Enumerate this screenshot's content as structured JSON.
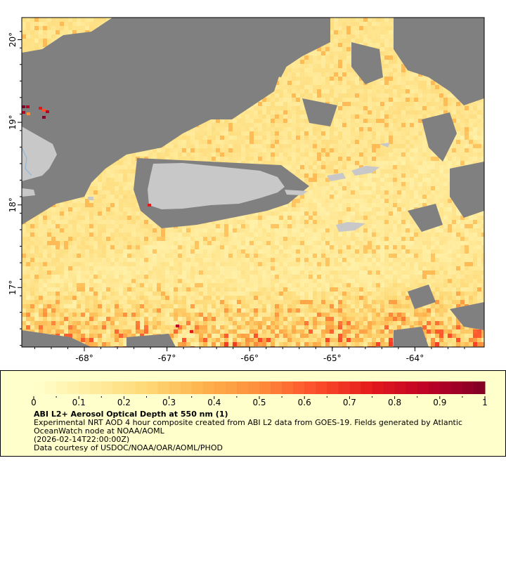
{
  "map": {
    "y_axis_labels": [
      "20°",
      "19°",
      "18°",
      "17°"
    ],
    "y_axis_values": [
      20,
      19,
      18,
      17
    ],
    "x_axis_labels": [
      "-68°",
      "-67°",
      "-66°",
      "-65°",
      "-64°"
    ],
    "x_axis_values": [
      -68,
      -67,
      -66,
      -65,
      -64
    ],
    "colors": {
      "cloud_mask": "#808080",
      "land": "#c8c8c8",
      "river": "#8ab4d8",
      "background": "#ffffff"
    }
  },
  "legend": {
    "colorbar": {
      "min": 0,
      "max": 1,
      "tick_labels": [
        "0",
        "0.1",
        "0.2",
        "0.3",
        "0.4",
        "0.5",
        "0.6",
        "0.7",
        "0.8",
        "0.9",
        "1"
      ],
      "palette_stops": [
        "#ffffcc",
        "#ffeda0",
        "#fed976",
        "#feb24c",
        "#fd8d3c",
        "#fc4e2a",
        "#e31a1c",
        "#bd0026",
        "#800026"
      ]
    },
    "title": "ABI L2+ Aerosol Optical Depth at 550 nm (1)",
    "lines": [
      "Experimental NRT AOD 4 hour composite created from ABI L2 data from GOES-19. Fields generated by Atlantic",
      "OceanWatch node at NOAA/AOML",
      "(2026-02-14T22:00:00Z)",
      "Data courtesy of USDOC/NOAA/OAR/AOML/PHOD"
    ],
    "background": "#ffffcc"
  }
}
